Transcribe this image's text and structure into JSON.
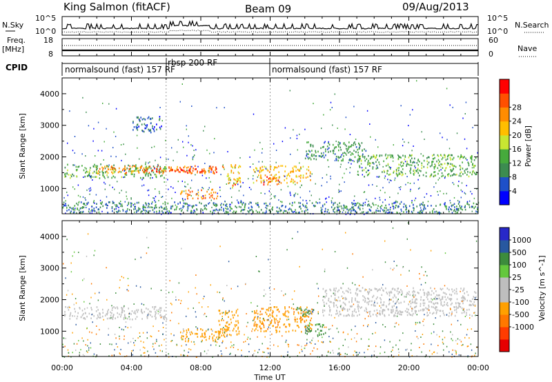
{
  "header": {
    "station": "King Salmon (fitACF)",
    "beam": "Beam 09",
    "date": "09/Aug/2013"
  },
  "noise_panel": {
    "left_label": "N.Sky",
    "left_ticks": [
      "10^5",
      "10^0"
    ],
    "right_label": "N.Search",
    "right_ticks": [
      "10^5",
      "10^0"
    ]
  },
  "freq_panel": {
    "left_label_1": "Freq.",
    "left_label_2": "[MHz]",
    "left_ticks": [
      "18",
      "8"
    ],
    "right_label": "Nave",
    "right_ticks": [
      "60",
      "0"
    ]
  },
  "cpid_panel": {
    "label": "CPID",
    "segments": [
      {
        "label": "normalsound (fast) 157 RF",
        "start_h": 0,
        "end_h": 6.0
      },
      {
        "label": "rbsp 200 RF",
        "start_h": 6.0,
        "end_h": 12.0
      },
      {
        "label": "normalsound (fast) 157 RF",
        "start_h": 12.0,
        "end_h": 24.0
      }
    ]
  },
  "colors": {
    "power_scale": [
      "#0000ff",
      "#1e50c8",
      "#3c8c50",
      "#46aa3c",
      "#c8e632",
      "#ffbe00",
      "#ff8c00",
      "#ff5000",
      "#ff0000"
    ],
    "velocity_scale": [
      "#2828c8",
      "#2858a0",
      "#3c8c3c",
      "#64c83c",
      "#bebebe",
      "#bebebe",
      "#ffa000",
      "#ff7800",
      "#ff3c00",
      "#e60000"
    ],
    "ground_scatter": "#c0c0c0"
  },
  "chart_data": [
    {
      "type": "heatmap",
      "panel": "power",
      "x_label": "",
      "ylabel": "Slant Range [km]",
      "xlim_hours": [
        0,
        24
      ],
      "ylim": [
        200,
        4500
      ],
      "y_ticks": [
        1000,
        2000,
        3000,
        4000
      ],
      "colorbar": {
        "label": "Power [dB]",
        "ticks": [
          4,
          8,
          12,
          16,
          20,
          24,
          28
        ],
        "range": [
          0,
          32
        ]
      },
      "regions": [
        {
          "t0": 0.1,
          "t1": 6.0,
          "r0": 1350,
          "r1": 1800,
          "value": 12
        },
        {
          "t0": 2.0,
          "t1": 9.3,
          "r0": 1500,
          "r1": 1750,
          "value": 24
        },
        {
          "t0": 4.5,
          "t1": 9.0,
          "r0": 1520,
          "r1": 1650,
          "value": 28
        },
        {
          "t0": 9.5,
          "t1": 10.3,
          "r0": 1000,
          "r1": 1800,
          "value": 20
        },
        {
          "t0": 9.8,
          "t1": 10.1,
          "r0": 1100,
          "r1": 1300,
          "value": 28
        },
        {
          "t0": 6.8,
          "t1": 9.0,
          "r0": 700,
          "r1": 1000,
          "value": 24
        },
        {
          "t0": 11.0,
          "t1": 14.3,
          "r0": 1200,
          "r1": 1750,
          "value": 20
        },
        {
          "t0": 11.5,
          "t1": 12.5,
          "r0": 1150,
          "r1": 1400,
          "value": 26
        },
        {
          "t0": 14.0,
          "t1": 17.5,
          "r0": 1900,
          "r1": 2500,
          "value": 10
        },
        {
          "t0": 17.0,
          "t1": 23.9,
          "r0": 1400,
          "r1": 2100,
          "value": 12
        },
        {
          "t0": 4.0,
          "t1": 5.8,
          "r0": 2800,
          "r1": 3300,
          "value": 6
        },
        {
          "t0": 0.0,
          "t1": 24.0,
          "r0": 250,
          "r1": 600,
          "value": 8
        }
      ]
    },
    {
      "type": "heatmap",
      "panel": "velocity",
      "x_label": "Time UT",
      "ylabel": "Slant Range [km]",
      "xlim_hours": [
        0,
        24
      ],
      "x_tick_labels": [
        "00:00",
        "04:00",
        "08:00",
        "12:00",
        "16:00",
        "20:00",
        "00:00"
      ],
      "ylim": [
        200,
        4500
      ],
      "y_ticks": [
        1000,
        2000,
        3000,
        4000
      ],
      "colorbar": {
        "label": "Velocity [m s^-1]",
        "ticks": [
          1000,
          500,
          100,
          25,
          -25,
          -100,
          -500,
          -1000
        ]
      },
      "regions": [
        {
          "t0": 0.1,
          "t1": 6.0,
          "r0": 1400,
          "r1": 1800,
          "value": 0,
          "kind": "ground"
        },
        {
          "t0": 6.8,
          "t1": 9.4,
          "r0": 700,
          "r1": 1100,
          "value": -150
        },
        {
          "t0": 9.0,
          "t1": 10.2,
          "r0": 900,
          "r1": 1700,
          "value": -300
        },
        {
          "t0": 11.0,
          "t1": 14.4,
          "r0": 1000,
          "r1": 1800,
          "value": -400
        },
        {
          "t0": 13.5,
          "t1": 14.5,
          "r0": 1500,
          "r1": 1800,
          "value": 400
        },
        {
          "t0": 14.0,
          "t1": 15.2,
          "r0": 900,
          "r1": 1300,
          "value": 150
        },
        {
          "t0": 15.0,
          "t1": 23.9,
          "r0": 1500,
          "r1": 2400,
          "value": 0,
          "kind": "ground"
        }
      ]
    }
  ]
}
